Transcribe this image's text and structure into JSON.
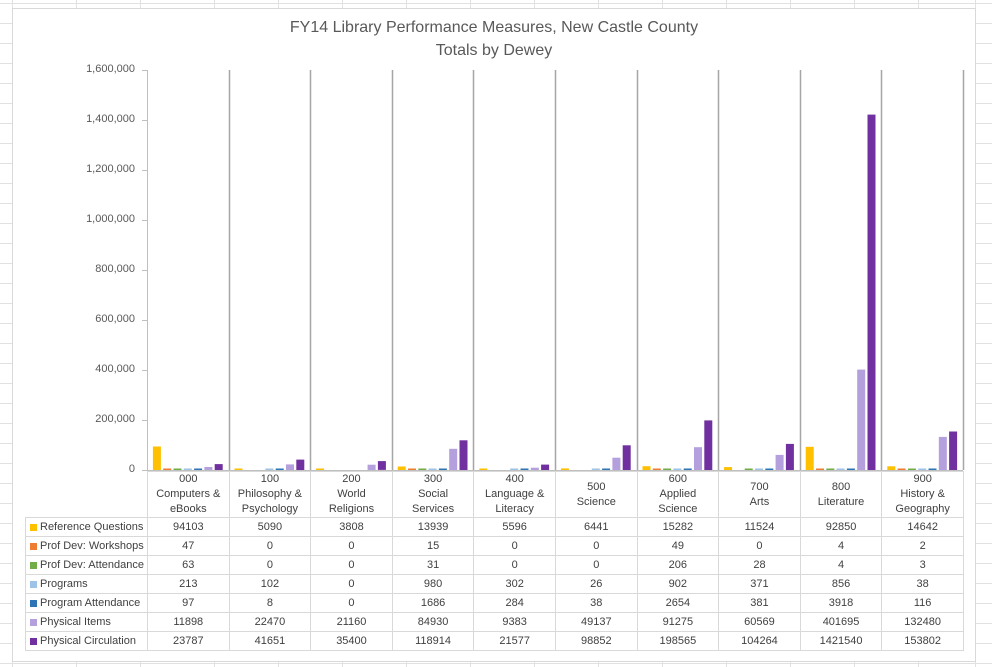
{
  "chart_data": {
    "type": "bar",
    "title": "FY14 Library Performance Measures, New Castle County",
    "subtitle": "Totals by Dewey",
    "categories": [
      [
        "000",
        "Computers &",
        "eBooks"
      ],
      [
        "100",
        "Philosophy &",
        "Psychology"
      ],
      [
        "200",
        "World",
        "Religions"
      ],
      [
        "300",
        "Social",
        "Services"
      ],
      [
        "400",
        "Language &",
        "Literacy"
      ],
      [
        "500",
        "Science"
      ],
      [
        "600",
        "Applied",
        "Science"
      ],
      [
        "700",
        "Arts"
      ],
      [
        "800",
        "Literature"
      ],
      [
        "900",
        "History &",
        "Geography"
      ]
    ],
    "ylim": [
      0,
      1600000
    ],
    "yticks": [
      "0",
      "200,000",
      "400,000",
      "600,000",
      "800,000",
      "1,000,000",
      "1,200,000",
      "1,400,000",
      "1,600,000"
    ],
    "ytick_values": [
      0,
      200000,
      400000,
      600000,
      800000,
      1000000,
      1200000,
      1400000,
      1600000
    ],
    "legend_placement": "data-table",
    "series": [
      {
        "name": "Reference Questions",
        "color": "#FFC000",
        "values": [
          94103,
          5090,
          3808,
          13939,
          5596,
          6441,
          15282,
          11524,
          92850,
          14642
        ]
      },
      {
        "name": "Prof Dev: Workshops",
        "color": "#ED7D31",
        "values": [
          47,
          0,
          0,
          15,
          0,
          0,
          49,
          0,
          4,
          2
        ]
      },
      {
        "name": "Prof Dev: Attendance",
        "color": "#70AD47",
        "values": [
          63,
          0,
          0,
          31,
          0,
          0,
          206,
          28,
          4,
          3
        ]
      },
      {
        "name": "Programs",
        "color": "#9DC3E6",
        "values": [
          213,
          102,
          0,
          980,
          302,
          26,
          902,
          371,
          856,
          38
        ]
      },
      {
        "name": "Program Attendance",
        "color": "#2E75B6",
        "values": [
          97,
          8,
          0,
          1686,
          284,
          38,
          2654,
          381,
          3918,
          116
        ]
      },
      {
        "name": "Physical Items",
        "color": "#B4A0DC",
        "values": [
          11898,
          22470,
          21160,
          84930,
          9383,
          49137,
          91275,
          60569,
          401695,
          132480
        ]
      },
      {
        "name": "Physical Circulation",
        "color": "#7030A0",
        "values": [
          23787,
          41651,
          35400,
          118914,
          21577,
          98852,
          198565,
          104264,
          1421540,
          153802
        ]
      }
    ]
  }
}
